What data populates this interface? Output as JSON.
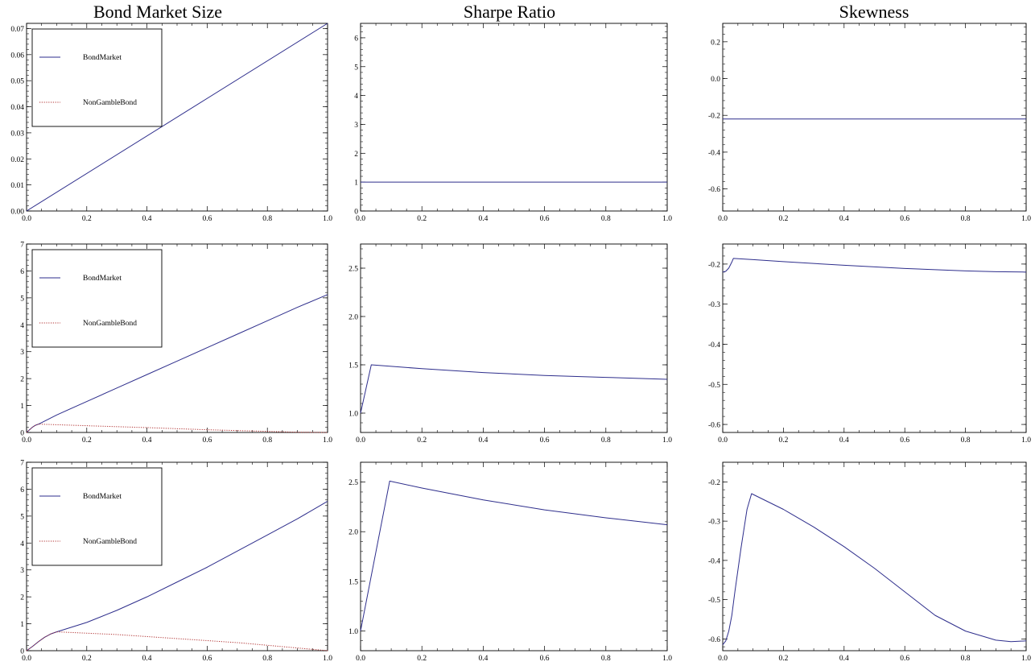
{
  "column_titles": [
    "Bond Market Size",
    "Sharpe Ratio",
    "Skewness"
  ],
  "colors": {
    "series_blue": "#2e2e8c",
    "series_red": "#b03030",
    "frame": "#000000"
  },
  "chart_data": [
    {
      "type": "line",
      "row": 0,
      "col": 0,
      "title": "Bond Market Size",
      "xlim": [
        0,
        1
      ],
      "ylim": [
        0,
        0.072
      ],
      "xticks": [
        "0.0",
        "0.2",
        "0.4",
        "0.6",
        "0.8",
        "1.0"
      ],
      "yticks": [
        "0.00",
        "0.01",
        "0.02",
        "0.03",
        "0.04",
        "0.05",
        "0.06",
        "0.07"
      ],
      "legend": {
        "placement": "top-left",
        "entries": [
          "BondMarket",
          "NonGambleBond"
        ]
      },
      "series": [
        {
          "name": "BondMarket",
          "style": "solid",
          "x": [
            0,
            1
          ],
          "y": [
            0,
            0.072
          ]
        }
      ]
    },
    {
      "type": "line",
      "row": 0,
      "col": 1,
      "title": "Sharpe Ratio",
      "xlim": [
        0,
        1
      ],
      "ylim": [
        0,
        6.5
      ],
      "xticks": [
        "0.0",
        "0.2",
        "0.4",
        "0.6",
        "0.8",
        "1.0"
      ],
      "yticks": [
        "0",
        "1",
        "2",
        "3",
        "4",
        "5",
        "6"
      ],
      "series": [
        {
          "style": "solid",
          "x": [
            0,
            1
          ],
          "y": [
            1,
            1
          ]
        }
      ]
    },
    {
      "type": "line",
      "row": 0,
      "col": 2,
      "title": "Skewness",
      "xlim": [
        0,
        1
      ],
      "ylim": [
        -0.72,
        0.3
      ],
      "xticks": [
        "0.0",
        "0.2",
        "0.4",
        "0.6",
        "0.8",
        "1.0"
      ],
      "yticks": [
        "0.2",
        "0.0",
        "-0.2",
        "-0.4",
        "-0.6"
      ],
      "series": [
        {
          "style": "solid",
          "x": [
            0,
            1
          ],
          "y": [
            -0.22,
            -0.22
          ]
        }
      ]
    },
    {
      "type": "line",
      "row": 1,
      "col": 0,
      "xlim": [
        0,
        1
      ],
      "ylim": [
        0,
        7
      ],
      "xticks": [
        "0.0",
        "0.2",
        "0.4",
        "0.6",
        "0.8",
        "1.0"
      ],
      "yticks": [
        "0",
        "1",
        "2",
        "3",
        "4",
        "5",
        "6",
        "7"
      ],
      "legend": {
        "placement": "top-left",
        "entries": [
          "BondMarket",
          "NonGambleBond"
        ]
      },
      "series": [
        {
          "name": "BondMarket",
          "style": "solid",
          "x": [
            0,
            0.01,
            0.02,
            0.03,
            0.04,
            0.1,
            0.2,
            0.3,
            0.4,
            0.5,
            0.6,
            0.7,
            0.8,
            0.9,
            1.0
          ],
          "y": [
            0,
            0.1,
            0.2,
            0.27,
            0.31,
            0.65,
            1.15,
            1.65,
            2.15,
            2.65,
            3.15,
            3.65,
            4.15,
            4.65,
            5.12
          ]
        },
        {
          "name": "NonGambleBond",
          "style": "dotted",
          "x": [
            0,
            0.01,
            0.02,
            0.03,
            0.04,
            0.2,
            0.4,
            0.6,
            0.8,
            0.9,
            1.0
          ],
          "y": [
            0,
            0.1,
            0.2,
            0.27,
            0.31,
            0.25,
            0.18,
            0.1,
            0.04,
            0.01,
            0
          ]
        }
      ]
    },
    {
      "type": "line",
      "row": 1,
      "col": 1,
      "xlim": [
        0,
        1
      ],
      "ylim": [
        0.8,
        2.75
      ],
      "xticks": [
        "0.0",
        "0.2",
        "0.4",
        "0.6",
        "0.8",
        "1.0"
      ],
      "yticks": [
        "1.0",
        "1.5",
        "2.0",
        "2.5"
      ],
      "series": [
        {
          "style": "solid",
          "x": [
            0,
            0.035,
            0.2,
            0.4,
            0.6,
            0.8,
            1.0
          ],
          "y": [
            1.0,
            1.5,
            1.46,
            1.42,
            1.39,
            1.37,
            1.35
          ]
        }
      ]
    },
    {
      "type": "line",
      "row": 1,
      "col": 2,
      "xlim": [
        0,
        1
      ],
      "ylim": [
        -0.62,
        -0.15
      ],
      "xticks": [
        "0.0",
        "0.2",
        "0.4",
        "0.6",
        "0.8",
        "1.0"
      ],
      "yticks": [
        "-0.2",
        "-0.3",
        "-0.4",
        "-0.5",
        "-0.6"
      ],
      "series": [
        {
          "style": "solid",
          "x": [
            0,
            0.01,
            0.02,
            0.03,
            0.035,
            0.1,
            0.2,
            0.4,
            0.6,
            0.8,
            0.9,
            1.0
          ],
          "y": [
            -0.22,
            -0.218,
            -0.21,
            -0.195,
            -0.186,
            -0.189,
            -0.194,
            -0.203,
            -0.211,
            -0.217,
            -0.219,
            -0.22
          ]
        }
      ]
    },
    {
      "type": "line",
      "row": 2,
      "col": 0,
      "xlim": [
        0,
        1
      ],
      "ylim": [
        0,
        7
      ],
      "xticks": [
        "0.0",
        "0.2",
        "0.4",
        "0.6",
        "0.8",
        "1.0"
      ],
      "yticks": [
        "0",
        "1",
        "2",
        "3",
        "4",
        "5",
        "6",
        "7"
      ],
      "legend": {
        "placement": "top-left",
        "entries": [
          "BondMarket",
          "NonGambleBond"
        ]
      },
      "series": [
        {
          "name": "BondMarket",
          "style": "solid",
          "x": [
            0,
            0.02,
            0.04,
            0.06,
            0.08,
            0.1,
            0.2,
            0.3,
            0.4,
            0.5,
            0.6,
            0.7,
            0.8,
            0.9,
            1.0
          ],
          "y": [
            0,
            0.16,
            0.34,
            0.5,
            0.62,
            0.7,
            1.05,
            1.5,
            2.0,
            2.55,
            3.1,
            3.7,
            4.3,
            4.9,
            5.55
          ]
        },
        {
          "name": "NonGambleBond",
          "style": "dotted",
          "x": [
            0,
            0.02,
            0.04,
            0.06,
            0.08,
            0.1,
            0.3,
            0.5,
            0.7,
            0.85,
            0.95,
            1.0
          ],
          "y": [
            0,
            0.16,
            0.34,
            0.5,
            0.62,
            0.7,
            0.6,
            0.45,
            0.3,
            0.15,
            0.05,
            0
          ]
        }
      ]
    },
    {
      "type": "line",
      "row": 2,
      "col": 1,
      "xlim": [
        0,
        1
      ],
      "ylim": [
        0.8,
        2.7
      ],
      "xticks": [
        "0.0",
        "0.2",
        "0.4",
        "0.6",
        "0.8",
        "1.0"
      ],
      "yticks": [
        "1.0",
        "1.5",
        "2.0",
        "2.5"
      ],
      "series": [
        {
          "style": "solid",
          "x": [
            0,
            0.095,
            0.2,
            0.4,
            0.6,
            0.8,
            1.0
          ],
          "y": [
            1.0,
            2.51,
            2.44,
            2.32,
            2.22,
            2.14,
            2.07
          ]
        }
      ]
    },
    {
      "type": "line",
      "row": 2,
      "col": 2,
      "xlim": [
        0,
        1
      ],
      "ylim": [
        -0.63,
        -0.15
      ],
      "xticks": [
        "0.0",
        "0.2",
        "0.4",
        "0.6",
        "0.8",
        "1.0"
      ],
      "yticks": [
        "-0.2",
        "-0.3",
        "-0.4",
        "-0.5",
        "-0.6"
      ],
      "series": [
        {
          "style": "solid",
          "x": [
            0,
            0.01,
            0.02,
            0.03,
            0.04,
            0.06,
            0.08,
            0.095,
            0.2,
            0.3,
            0.4,
            0.5,
            0.6,
            0.7,
            0.8,
            0.9,
            0.95,
            1.0
          ],
          "y": [
            -0.615,
            -0.605,
            -0.58,
            -0.54,
            -0.48,
            -0.37,
            -0.27,
            -0.23,
            -0.27,
            -0.315,
            -0.365,
            -0.42,
            -0.48,
            -0.54,
            -0.58,
            -0.603,
            -0.607,
            -0.605
          ]
        }
      ]
    }
  ]
}
